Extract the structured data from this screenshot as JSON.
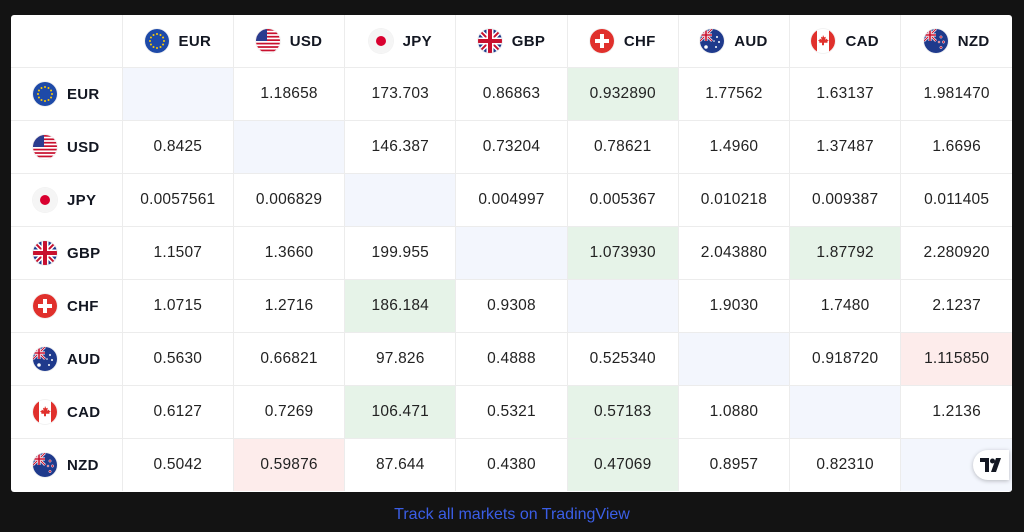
{
  "widget": "Forex cross rates",
  "currencies": [
    "EUR",
    "USD",
    "JPY",
    "GBP",
    "CHF",
    "AUD",
    "CAD",
    "NZD"
  ],
  "flag_icons": [
    "eu-flag-icon",
    "us-flag-icon",
    "jp-flag-icon",
    "gb-flag-icon",
    "ch-flag-icon",
    "au-flag-icon",
    "ca-flag-icon",
    "nz-flag-icon"
  ],
  "rows": [
    {
      "code": "EUR",
      "cells": [
        "",
        "1.18658",
        "173.703",
        "0.86863",
        "0.932890",
        "1.77562",
        "1.63137",
        "1.981470"
      ],
      "highlight": [
        "diag",
        "",
        "",
        "",
        "up",
        "",
        "",
        ""
      ]
    },
    {
      "code": "USD",
      "cells": [
        "0.8425",
        "",
        "146.387",
        "0.73204",
        "0.78621",
        "1.4960",
        "1.37487",
        "1.6696"
      ],
      "highlight": [
        "",
        "diag",
        "",
        "",
        "",
        "",
        "",
        ""
      ]
    },
    {
      "code": "JPY",
      "cells": [
        "0.0057561",
        "0.006829",
        "",
        "0.004997",
        "0.005367",
        "0.010218",
        "0.009387",
        "0.011405"
      ],
      "highlight": [
        "",
        "",
        "diag",
        "",
        "",
        "",
        "",
        ""
      ]
    },
    {
      "code": "GBP",
      "cells": [
        "1.1507",
        "1.3660",
        "199.955",
        "",
        "1.073930",
        "2.043880",
        "1.87792",
        "2.280920"
      ],
      "highlight": [
        "",
        "",
        "",
        "diag",
        "up",
        "",
        "up",
        ""
      ]
    },
    {
      "code": "CHF",
      "cells": [
        "1.0715",
        "1.2716",
        "186.184",
        "0.9308",
        "",
        "1.9030",
        "1.7480",
        "2.1237"
      ],
      "highlight": [
        "",
        "",
        "up",
        "",
        "diag",
        "",
        "",
        ""
      ]
    },
    {
      "code": "AUD",
      "cells": [
        "0.5630",
        "0.66821",
        "97.826",
        "0.4888",
        "0.525340",
        "",
        "0.918720",
        "1.115850"
      ],
      "highlight": [
        "",
        "",
        "",
        "",
        "",
        "diag",
        "",
        "down"
      ]
    },
    {
      "code": "CAD",
      "cells": [
        "0.6127",
        "0.7269",
        "106.471",
        "0.5321",
        "0.57183",
        "1.0880",
        "",
        "1.2136"
      ],
      "highlight": [
        "",
        "",
        "up",
        "",
        "up",
        "",
        "diag",
        ""
      ]
    },
    {
      "code": "NZD",
      "cells": [
        "0.5042",
        "0.59876",
        "87.644",
        "0.4380",
        "0.47069",
        "0.8957",
        "0.82310",
        ""
      ],
      "highlight": [
        "",
        "down",
        "",
        "",
        "up",
        "",
        "",
        "diag"
      ]
    }
  ],
  "colors": {
    "up": "#e6f3e8",
    "down": "#fdeceb",
    "diag": "#f3f6fd",
    "link": "#3b5ee6",
    "background": "#131313"
  },
  "footer": {
    "link_text": "Track all markets on TradingView"
  },
  "logo_icon": "tradingview-logo-icon"
}
